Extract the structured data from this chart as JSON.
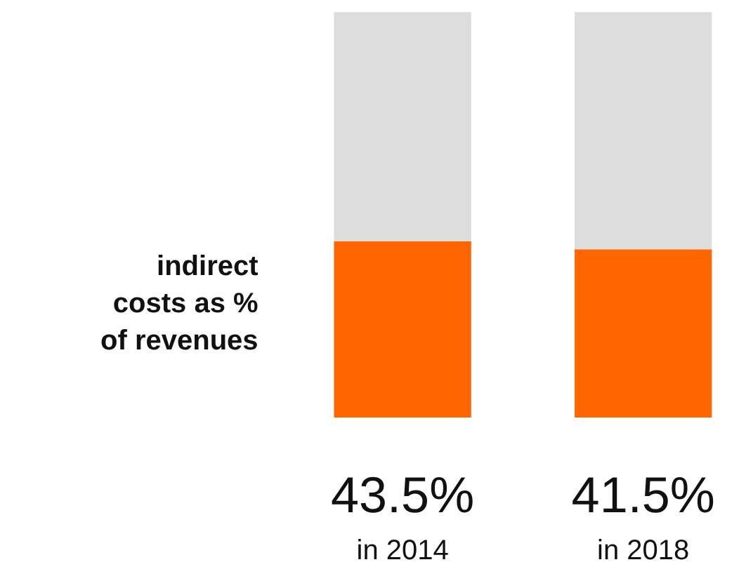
{
  "chart_data": {
    "type": "bar",
    "stacked": true,
    "categories": [
      "in 2014",
      "in 2018"
    ],
    "series": [
      {
        "color": "#ff6600",
        "values": [
          43.5,
          41.5
        ],
        "value_labels": [
          "43.5%",
          "41.5%"
        ]
      },
      {
        "color": "#dddddd",
        "values": [
          56.5,
          58.5
        ]
      }
    ],
    "annotations": [
      "indirect costs as % of revenues"
    ]
  }
}
